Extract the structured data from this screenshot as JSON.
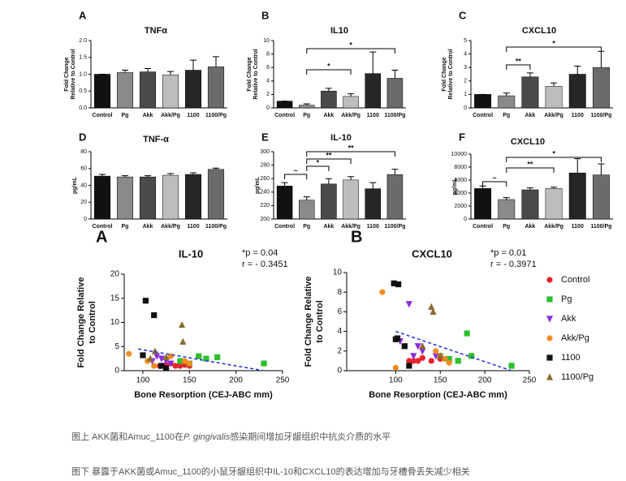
{
  "chart_data": [
    {
      "type": "bar",
      "letter": "A",
      "title": "TNFα",
      "ylabel": [
        "Fold Change",
        "Relative to Control"
      ],
      "categories": [
        "Control",
        "Pg",
        "Akk",
        "Akk/Pg",
        "1100",
        "1100/Pg"
      ],
      "colors": [
        "#111111",
        "#8a8a8a",
        "#4a4a4a",
        "#bdbdbd",
        "#262626",
        "#6b6b6b"
      ],
      "values": [
        1.0,
        1.05,
        1.07,
        0.98,
        1.12,
        1.22
      ],
      "errors": [
        0,
        0.07,
        0.1,
        0.1,
        0.3,
        0.3
      ],
      "ylim": [
        0,
        2
      ],
      "yticks": [
        {
          "value": 0,
          "label": "0.0"
        },
        {
          "value": 0.5,
          "label": "0.5"
        },
        {
          "value": 1,
          "label": "1.0"
        },
        {
          "value": 1.5,
          "label": "1.5"
        },
        {
          "value": 2,
          "label": "2.0"
        }
      ]
    },
    {
      "type": "bar",
      "letter": "B",
      "title": "IL10",
      "ylabel": [
        "Fold Change",
        "Relative to Control"
      ],
      "categories": [
        "Control",
        "Pg",
        "Akk",
        "Akk/Pg",
        "1100",
        "1100/Pg"
      ],
      "colors": [
        "#111111",
        "#8a8a8a",
        "#4a4a4a",
        "#bdbdbd",
        "#262626",
        "#6b6b6b"
      ],
      "values": [
        1.0,
        0.4,
        2.5,
        1.7,
        5.1,
        4.4
      ],
      "errors": [
        0,
        0.2,
        0.4,
        0.4,
        3.2,
        1.2
      ],
      "ylim": [
        0,
        10
      ],
      "yticks": [
        0,
        2,
        4,
        6,
        8,
        10
      ],
      "annotations": [
        "*",
        "*"
      ]
    },
    {
      "type": "bar",
      "letter": "C",
      "title": "CXCL10",
      "ylabel": [
        "Fold Change",
        "Relative to Control"
      ],
      "categories": [
        "Control",
        "Pg",
        "Akk",
        "Akk/Pg",
        "1100",
        "1100/Pg"
      ],
      "colors": [
        "#111111",
        "#8a8a8a",
        "#4a4a4a",
        "#bdbdbd",
        "#262626",
        "#6b6b6b"
      ],
      "values": [
        1.0,
        0.9,
        2.3,
        1.6,
        2.5,
        3.0
      ],
      "errors": [
        0,
        0.2,
        0.3,
        0.25,
        0.6,
        1.2
      ],
      "ylim": [
        0,
        5
      ],
      "yticks": [
        0,
        1,
        2,
        3,
        4,
        5
      ],
      "annotations": [
        "**",
        "*"
      ]
    },
    {
      "type": "bar",
      "letter": "D",
      "title": "TNF-α",
      "ylabel": [
        "pg/mL"
      ],
      "categories": [
        "Control",
        "Pg",
        "Akk",
        "Akk/Pg",
        "1100",
        "1100/Pg"
      ],
      "colors": [
        "#111111",
        "#8a8a8a",
        "#4a4a4a",
        "#bdbdbd",
        "#262626",
        "#6b6b6b"
      ],
      "values": [
        51,
        50,
        50,
        52,
        53,
        59
      ],
      "errors": [
        2,
        1.5,
        1.5,
        2,
        2,
        1.5
      ],
      "ylim": [
        0,
        80
      ],
      "yticks": [
        0,
        20,
        40,
        60,
        80
      ]
    },
    {
      "type": "bar",
      "letter": "E",
      "title": "IL-10",
      "ylabel": [
        "pg/mL"
      ],
      "categories": [
        "Control",
        "Pg",
        "Akk",
        "Akk/Pg",
        "1100",
        "1100/Pg"
      ],
      "colors": [
        "#111111",
        "#8a8a8a",
        "#4a4a4a",
        "#bdbdbd",
        "#262626",
        "#6b6b6b"
      ],
      "values": [
        249,
        228,
        252,
        258,
        245,
        266
      ],
      "errors": [
        5,
        5,
        8,
        5,
        9,
        8
      ],
      "ylim": [
        200,
        300
      ],
      "yticks": [
        200,
        220,
        240,
        260,
        280,
        300
      ],
      "annotations": [
        "~",
        "*",
        "**",
        "**"
      ]
    },
    {
      "type": "bar",
      "letter": "F",
      "title": "CXCL10",
      "ylabel": [
        "pg/mL"
      ],
      "categories": [
        "Control",
        "Pg",
        "Akk",
        "Akk/Pg",
        "1100",
        "1100/Pg"
      ],
      "colors": [
        "#111111",
        "#8a8a8a",
        "#4a4a4a",
        "#bdbdbd",
        "#262626",
        "#6b6b6b"
      ],
      "values": [
        4700,
        3000,
        4500,
        4700,
        7100,
        6800
      ],
      "errors": [
        400,
        300,
        300,
        200,
        2200,
        1700
      ],
      "ylim": [
        0,
        10000
      ],
      "yticks": [
        0,
        2000,
        4000,
        6000,
        8000,
        10000
      ],
      "annotations": [
        "~",
        "**",
        "*"
      ]
    },
    {
      "type": "scatter",
      "letter": "A",
      "title": "IL-10",
      "stats": [
        "*p = 0.04",
        "r = - 0.3451"
      ],
      "ylabel": [
        "Fold Change Relative",
        "to Control"
      ],
      "xlabel": "Bone Resorption (CEJ-ABC mm)",
      "xlim": [
        80,
        250
      ],
      "xticks": [
        100,
        150,
        200,
        250
      ],
      "ylim": [
        0,
        20
      ],
      "yticks": [
        0,
        5,
        10,
        15,
        20
      ],
      "trend": {
        "x": [
          95,
          230
        ],
        "y": [
          4.5,
          0
        ]
      },
      "series": [
        {
          "name": "Control",
          "color": "#e8232b",
          "marker": "circle",
          "x": [
            118,
            122,
            125,
            130,
            135,
            140,
            145,
            150
          ],
          "y": [
            1,
            1,
            1.2,
            1.5,
            1,
            1,
            1.2,
            1
          ]
        },
        {
          "name": "Pg",
          "color": "#2cc12c",
          "marker": "square",
          "x": [
            160,
            168,
            180,
            230,
            140,
            150
          ],
          "y": [
            3,
            2.5,
            2.8,
            1.5,
            2,
            1.5
          ]
        },
        {
          "name": "Akk",
          "color": "#8b2be2",
          "marker": "triangle-down",
          "x": [
            115,
            120,
            125,
            130,
            110
          ],
          "y": [
            3,
            2.5,
            2,
            1.5,
            2
          ]
        },
        {
          "name": "Akk/Pg",
          "color": "#f28c1e",
          "marker": "circle",
          "x": [
            85,
            105,
            130,
            145,
            150,
            112
          ],
          "y": [
            3.5,
            2,
            3,
            2,
            1.5,
            1
          ]
        },
        {
          "name": "1100",
          "color": "#111111",
          "marker": "square",
          "x": [
            103,
            112,
            100,
            120,
            125
          ],
          "y": [
            14.5,
            11.5,
            3.2,
            1,
            0.5
          ]
        },
        {
          "name": "1100/Pg",
          "color": "#8b6a2c",
          "marker": "triangle-up",
          "x": [
            113,
            142,
            143,
            125,
            108
          ],
          "y": [
            4,
            9.5,
            6,
            2.8,
            2.5
          ]
        }
      ]
    },
    {
      "type": "scatter",
      "letter": "B",
      "title": "CXCL10",
      "stats": [
        "*p = 0.01",
        "r = - 0.3971"
      ],
      "ylabel": [
        "Fold Change Relative",
        "to Control"
      ],
      "xlabel": "Bone Resorption (CEJ-ABC mm)",
      "xlim": [
        45,
        250
      ],
      "xticks": [
        100,
        150,
        200,
        250
      ],
      "ylim": [
        0,
        10
      ],
      "yticks": [
        0,
        2,
        4,
        6,
        8,
        10
      ],
      "trend": {
        "x": [
          100,
          230
        ],
        "y": [
          4,
          0
        ]
      },
      "legend": "right",
      "series": [
        {
          "name": "Control",
          "color": "#e8232b",
          "marker": "circle",
          "x": [
            115,
            120,
            125,
            130,
            140,
            150
          ],
          "y": [
            1,
            1,
            1,
            1.3,
            1,
            1.2
          ]
        },
        {
          "name": "Pg",
          "color": "#2cc12c",
          "marker": "square",
          "x": [
            180,
            185,
            230,
            150,
            160,
            170
          ],
          "y": [
            3.8,
            1.5,
            0.5,
            1.5,
            1.2,
            1
          ]
        },
        {
          "name": "Akk",
          "color": "#8b2be2",
          "marker": "triangle-down",
          "x": [
            115,
            105,
            125,
            130,
            145,
            120
          ],
          "y": [
            6.8,
            3,
            2.5,
            2,
            1.5,
            1.5
          ]
        },
        {
          "name": "Akk/Pg",
          "color": "#f28c1e",
          "marker": "circle",
          "x": [
            85,
            145,
            155,
            160,
            100,
            150
          ],
          "y": [
            8,
            2,
            1.2,
            0.8,
            0.3,
            1.5
          ]
        },
        {
          "name": "1100",
          "color": "#111111",
          "marker": "square",
          "x": [
            98,
            103,
            100,
            102,
            110,
            115
          ],
          "y": [
            8.9,
            8.8,
            3.2,
            3.3,
            2.5,
            0.5
          ]
        },
        {
          "name": "1100/Pg",
          "color": "#8b6a2c",
          "marker": "triangle-up",
          "x": [
            140,
            142,
            150,
            130
          ],
          "y": [
            6.5,
            6,
            1.5,
            2.5
          ]
        }
      ]
    }
  ],
  "captions": [
    {
      "prefix": "图上 AKK菌和Amuc_1100在",
      "italic": "P. gingivalis",
      "suffix": "感染期间增加牙龈组织中抗炎介质的水平"
    },
    "图下 暴露于AKK菌或Amuc_1100的小鼠牙龈组织中IL-10和CXCL10的表达增加与牙槽骨丢失减少相关"
  ]
}
